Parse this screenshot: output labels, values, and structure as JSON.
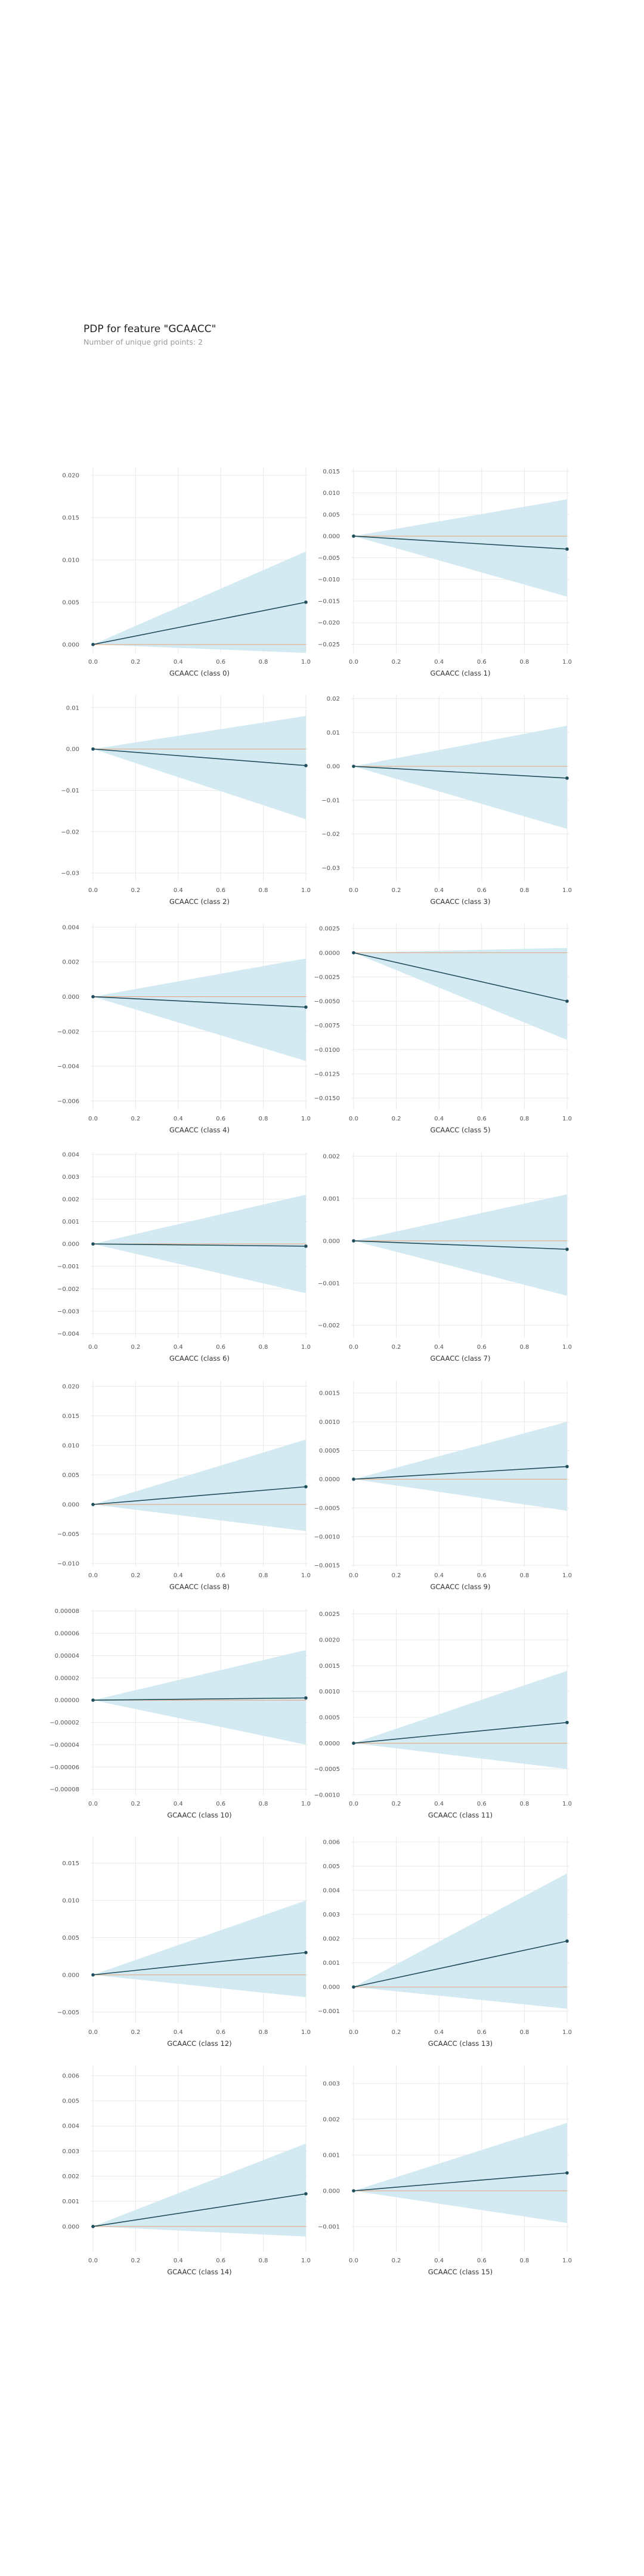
{
  "header": {
    "title": "PDP for feature \"GCAACC\"",
    "subtitle": "Number of unique grid points: 2"
  },
  "colors": {
    "band": "#cfe8f1",
    "line": "#1f4e5a",
    "baseline": "#e6a37a",
    "grid": "#e9e9e9"
  },
  "chart_data": [
    {
      "type": "line",
      "xlabel": "GCAACC (class 0)",
      "x": [
        0,
        1
      ],
      "y": [
        0,
        0.005
      ],
      "lower": [
        0,
        -0.001
      ],
      "upper": [
        0,
        0.011
      ],
      "ylim": [
        -0.001,
        0.021
      ],
      "xticks": [
        "0.0",
        "0.2",
        "0.4",
        "0.6",
        "0.8",
        "1.0"
      ],
      "yticks": [
        0,
        0.005,
        0.01,
        0.015,
        0.02
      ],
      "ytick_labels": [
        "0.000",
        "0.005",
        "0.010",
        "0.015",
        "0.020"
      ]
    },
    {
      "type": "line",
      "xlabel": "GCAACC (class 1)",
      "x": [
        0,
        1
      ],
      "y": [
        0,
        -0.003
      ],
      "lower": [
        0,
        -0.014
      ],
      "upper": [
        0,
        0.0085
      ],
      "ylim": [
        -0.027,
        0.016
      ],
      "xticks": [
        "0.0",
        "0.2",
        "0.4",
        "0.6",
        "0.8",
        "1.0"
      ],
      "yticks": [
        0.015,
        0.01,
        0.005,
        0,
        -0.005,
        -0.01,
        -0.015,
        -0.02,
        -0.025
      ],
      "ytick_labels": [
        "0.015",
        "0.010",
        "0.005",
        "0.000",
        "−0.005",
        "−0.010",
        "−0.015",
        "−0.020",
        "−0.025"
      ]
    },
    {
      "type": "line",
      "xlabel": "GCAACC (class 2)",
      "x": [
        0,
        1
      ],
      "y": [
        0,
        -0.004
      ],
      "lower": [
        0,
        -0.017
      ],
      "upper": [
        0,
        0.008
      ],
      "ylim": [
        -0.032,
        0.013
      ],
      "xticks": [
        "0.0",
        "0.2",
        "0.4",
        "0.6",
        "0.8",
        "1.0"
      ],
      "yticks": [
        0.01,
        0,
        -0.01,
        -0.02,
        -0.03
      ],
      "ytick_labels": [
        "0.01",
        "0.00",
        "−0.01",
        "−0.02",
        "−0.03"
      ]
    },
    {
      "type": "line",
      "xlabel": "GCAACC (class 3)",
      "x": [
        0,
        1
      ],
      "y": [
        0,
        -0.0035
      ],
      "lower": [
        0,
        -0.0185
      ],
      "upper": [
        0,
        0.012
      ],
      "ylim": [
        -0.034,
        0.021
      ],
      "xticks": [
        "0.0",
        "0.2",
        "0.4",
        "0.6",
        "0.8",
        "1.0"
      ],
      "yticks": [
        0.02,
        0.01,
        0,
        -0.01,
        -0.02,
        -0.03
      ],
      "ytick_labels": [
        "0.02",
        "0.01",
        "0.00",
        "−0.01",
        "−0.02",
        "−0.03"
      ]
    },
    {
      "type": "line",
      "xlabel": "GCAACC (class 4)",
      "x": [
        0,
        1
      ],
      "y": [
        0,
        -0.0006
      ],
      "lower": [
        0,
        -0.0037
      ],
      "upper": [
        0,
        0.0022
      ],
      "ylim": [
        -0.0065,
        0.0042
      ],
      "xticks": [
        "0.0",
        "0.2",
        "0.4",
        "0.6",
        "0.8",
        "1.0"
      ],
      "yticks": [
        0.004,
        0.002,
        0,
        -0.002,
        -0.004,
        -0.006
      ],
      "ytick_labels": [
        "0.004",
        "0.002",
        "0.000",
        "−0.002",
        "−0.004",
        "−0.006"
      ]
    },
    {
      "type": "line",
      "xlabel": "GCAACC (class 5)",
      "x": [
        0,
        1
      ],
      "y": [
        0,
        -0.005
      ],
      "lower": [
        0,
        -0.009
      ],
      "upper": [
        0,
        0.0005
      ],
      "ylim": [
        -0.0162,
        0.003
      ],
      "xticks": [
        "0.0",
        "0.2",
        "0.4",
        "0.6",
        "0.8",
        "1.0"
      ],
      "yticks": [
        0.0025,
        0,
        -0.0025,
        -0.005,
        -0.0075,
        -0.01,
        -0.0125,
        -0.015
      ],
      "ytick_labels": [
        "0.0025",
        "0.0000",
        "−0.0025",
        "−0.0050",
        "−0.0075",
        "−0.0100",
        "−0.0125",
        "−0.0150"
      ]
    },
    {
      "type": "line",
      "xlabel": "GCAACC (class 6)",
      "x": [
        0,
        1
      ],
      "y": [
        0,
        -0.0001
      ],
      "lower": [
        0,
        -0.0022
      ],
      "upper": [
        0,
        0.0022
      ],
      "ylim": [
        -0.0042,
        0.0041
      ],
      "xticks": [
        "0.0",
        "0.2",
        "0.4",
        "0.6",
        "0.8",
        "1.0"
      ],
      "yticks": [
        0.004,
        0.003,
        0.002,
        0.001,
        0,
        -0.001,
        -0.002,
        -0.003,
        -0.004
      ],
      "ytick_labels": [
        "0.004",
        "0.003",
        "0.002",
        "0.001",
        "0.000",
        "−0.001",
        "−0.002",
        "−0.003",
        "−0.004"
      ]
    },
    {
      "type": "line",
      "xlabel": "GCAACC (class 7)",
      "x": [
        0,
        1
      ],
      "y": [
        0,
        -0.0002
      ],
      "lower": [
        0,
        -0.0013
      ],
      "upper": [
        0,
        0.0011
      ],
      "ylim": [
        -0.0023,
        0.0021
      ],
      "xticks": [
        "0.0",
        "0.2",
        "0.4",
        "0.6",
        "0.8",
        "1.0"
      ],
      "yticks": [
        0.002,
        0.001,
        0,
        -0.001,
        -0.002
      ],
      "ytick_labels": [
        "0.002",
        "0.001",
        "0.000",
        "−0.001",
        "−0.002"
      ]
    },
    {
      "type": "line",
      "xlabel": "GCAACC (class 8)",
      "x": [
        0,
        1
      ],
      "y": [
        0,
        0.003
      ],
      "lower": [
        0,
        -0.0045
      ],
      "upper": [
        0,
        0.011
      ],
      "ylim": [
        -0.0105,
        0.021
      ],
      "xticks": [
        "0.0",
        "0.2",
        "0.4",
        "0.6",
        "0.8",
        "1.0"
      ],
      "yticks": [
        0.02,
        0.015,
        0.01,
        0.005,
        0,
        -0.005,
        -0.01
      ],
      "ytick_labels": [
        "0.020",
        "0.015",
        "0.010",
        "0.005",
        "0.000",
        "−0.005",
        "−0.010"
      ]
    },
    {
      "type": "line",
      "xlabel": "GCAACC (class 9)",
      "x": [
        0,
        1
      ],
      "y": [
        0,
        0.00022
      ],
      "lower": [
        0,
        -0.00055
      ],
      "upper": [
        0,
        0.001
      ],
      "ylim": [
        -0.00152,
        0.00172
      ],
      "xticks": [
        "0.0",
        "0.2",
        "0.4",
        "0.6",
        "0.8",
        "1.0"
      ],
      "yticks": [
        0.0015,
        0.001,
        0.0005,
        0,
        -0.0005,
        -0.001,
        -0.0015
      ],
      "ytick_labels": [
        "0.0015",
        "0.0010",
        "0.0005",
        "0.0000",
        "−0.0005",
        "−0.0010",
        "−0.0015"
      ]
    },
    {
      "type": "line",
      "xlabel": "GCAACC (class 10)",
      "x": [
        0,
        1
      ],
      "y": [
        0,
        2e-06
      ],
      "lower": [
        0,
        -4e-05
      ],
      "upper": [
        0,
        4.5e-05
      ],
      "ylim": [
        -8.5e-05,
        8.2e-05
      ],
      "xticks": [
        "0.0",
        "0.2",
        "0.4",
        "0.6",
        "0.8",
        "1.0"
      ],
      "yticks": [
        8e-05,
        6e-05,
        4e-05,
        2e-05,
        0,
        -2e-05,
        -4e-05,
        -6e-05,
        -8e-05
      ],
      "ytick_labels": [
        "0.00008",
        "0.00006",
        "0.00004",
        "0.00002",
        "0.00000",
        "−0.00002",
        "−0.00004",
        "−0.00006",
        "−0.00008"
      ]
    },
    {
      "type": "line",
      "xlabel": "GCAACC (class 11)",
      "x": [
        0,
        1
      ],
      "y": [
        0,
        0.0004
      ],
      "lower": [
        0,
        -0.0005
      ],
      "upper": [
        0,
        0.0014
      ],
      "ylim": [
        -0.001,
        0.0026
      ],
      "xticks": [
        "0.0",
        "0.2",
        "0.4",
        "0.6",
        "0.8",
        "1.0"
      ],
      "yticks": [
        0.0025,
        0.002,
        0.0015,
        0.001,
        0.0005,
        0,
        -0.0005,
        -0.001
      ],
      "ytick_labels": [
        "0.0025",
        "0.0020",
        "0.0015",
        "0.0010",
        "0.0005",
        "0.0000",
        "−0.0005",
        "−0.0010"
      ]
    },
    {
      "type": "line",
      "xlabel": "GCAACC (class 12)",
      "x": [
        0,
        1
      ],
      "y": [
        0,
        0.003
      ],
      "lower": [
        0,
        -0.003
      ],
      "upper": [
        0,
        0.01
      ],
      "ylim": [
        -0.0065,
        0.0185
      ],
      "xticks": [
        "0.0",
        "0.2",
        "0.4",
        "0.6",
        "0.8",
        "1.0"
      ],
      "yticks": [
        0.015,
        0.01,
        0.005,
        0,
        -0.005
      ],
      "ytick_labels": [
        "0.015",
        "0.010",
        "0.005",
        "0.000",
        "−0.005"
      ]
    },
    {
      "type": "line",
      "xlabel": "GCAACC (class 13)",
      "x": [
        0,
        1
      ],
      "y": [
        0,
        0.0019
      ],
      "lower": [
        0,
        -0.0009
      ],
      "upper": [
        0,
        0.0047
      ],
      "ylim": [
        -0.0015,
        0.0062
      ],
      "xticks": [
        "0.0",
        "0.2",
        "0.4",
        "0.6",
        "0.8",
        "1.0"
      ],
      "yticks": [
        0.006,
        0.005,
        0.004,
        0.003,
        0.002,
        0.001,
        0,
        -0.001
      ],
      "ytick_labels": [
        "0.006",
        "0.005",
        "0.004",
        "0.003",
        "0.002",
        "0.001",
        "0.000",
        "−0.001"
      ]
    },
    {
      "type": "line",
      "xlabel": "GCAACC (class 14)",
      "x": [
        0,
        1
      ],
      "y": [
        0,
        0.0013
      ],
      "lower": [
        0,
        -0.0004
      ],
      "upper": [
        0,
        0.0033
      ],
      "ylim": [
        -0.001,
        0.0064
      ],
      "xticks": [
        "0.0",
        "0.2",
        "0.4",
        "0.6",
        "0.8",
        "1.0"
      ],
      "yticks": [
        0.006,
        0.005,
        0.004,
        0.003,
        0.002,
        0.001,
        0
      ],
      "ytick_labels": [
        "0.006",
        "0.005",
        "0.004",
        "0.003",
        "0.002",
        "0.001",
        "0.000"
      ]
    },
    {
      "type": "line",
      "xlabel": "GCAACC (class 15)",
      "x": [
        0,
        1
      ],
      "y": [
        0,
        0.0005
      ],
      "lower": [
        0,
        -0.0009
      ],
      "upper": [
        0,
        0.0019
      ],
      "ylim": [
        -0.0017,
        0.0035
      ],
      "xticks": [
        "0.0",
        "0.2",
        "0.4",
        "0.6",
        "0.8",
        "1.0"
      ],
      "yticks": [
        0.003,
        0.002,
        0.001,
        0,
        -0.001
      ],
      "ytick_labels": [
        "0.003",
        "0.002",
        "0.001",
        "0.000",
        "−0.001"
      ]
    }
  ]
}
